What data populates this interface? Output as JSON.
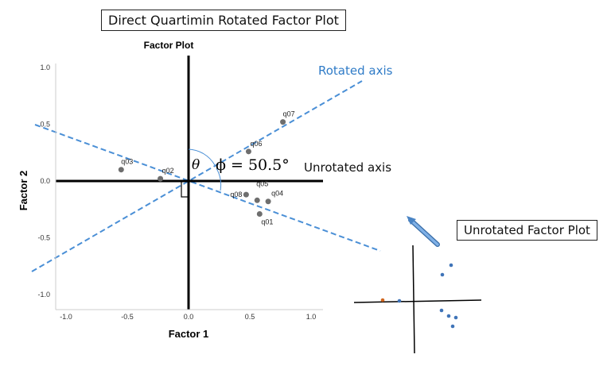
{
  "title_box": "Direct Quartimin Rotated Factor Plot",
  "unrotated_box": "Unrotated Factor Plot",
  "plot": {
    "title": "Factor Plot",
    "xlabel": "Factor 1",
    "ylabel": "Factor 2",
    "xticks": [
      "-1.0",
      "-0.5",
      "0.0",
      "0.5",
      "1.0"
    ],
    "yticks": [
      "1.0",
      "0.5",
      "0.0",
      "-0.5",
      "-1.0"
    ],
    "points": [
      {
        "label": "q07",
        "x": 0.77,
        "y": 0.52
      },
      {
        "label": "q06",
        "x": 0.49,
        "y": 0.26
      },
      {
        "label": "q03",
        "x": -0.55,
        "y": 0.1
      },
      {
        "label": "q02",
        "x": -0.23,
        "y": 0.02
      },
      {
        "label": "q05",
        "x": 0.56,
        "y": -0.17
      },
      {
        "label": "q08",
        "x": 0.47,
        "y": -0.12
      },
      {
        "label": "q04",
        "x": 0.65,
        "y": -0.18
      },
      {
        "label": "q01",
        "x": 0.58,
        "y": -0.29
      }
    ],
    "point_color": "#6e6e6e"
  },
  "annotations": {
    "rotated_axis": "Rotated axis",
    "unrotated_axis": "Unrotated axis",
    "theta": "θ",
    "phi": "ϕ = 50.5°",
    "accent_color": "#4a8fd6",
    "rotated_label_color": "#2f7bc7"
  }
}
